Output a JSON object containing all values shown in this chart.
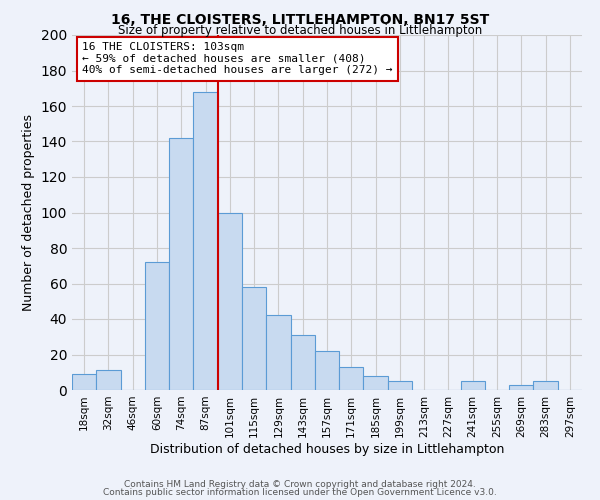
{
  "title": "16, THE CLOISTERS, LITTLEHAMPTON, BN17 5ST",
  "subtitle": "Size of property relative to detached houses in Littlehampton",
  "xlabel": "Distribution of detached houses by size in Littlehampton",
  "ylabel": "Number of detached properties",
  "footer_line1": "Contains HM Land Registry data © Crown copyright and database right 2024.",
  "footer_line2": "Contains public sector information licensed under the Open Government Licence v3.0.",
  "bin_labels": [
    "18sqm",
    "32sqm",
    "46sqm",
    "60sqm",
    "74sqm",
    "87sqm",
    "101sqm",
    "115sqm",
    "129sqm",
    "143sqm",
    "157sqm",
    "171sqm",
    "185sqm",
    "199sqm",
    "213sqm",
    "227sqm",
    "241sqm",
    "255sqm",
    "269sqm",
    "283sqm",
    "297sqm"
  ],
  "bar_values": [
    9,
    11,
    0,
    72,
    142,
    168,
    100,
    58,
    42,
    31,
    22,
    13,
    8,
    5,
    0,
    0,
    5,
    0,
    3,
    5,
    0
  ],
  "bar_color": "#c8daf0",
  "bar_edge_color": "#5b9bd5",
  "annotation_title": "16 THE CLOISTERS: 103sqm",
  "annotation_line2": "← 59% of detached houses are smaller (408)",
  "annotation_line3": "40% of semi-detached houses are larger (272) →",
  "annotation_box_color": "#ffffff",
  "annotation_border_color": "#cc0000",
  "vline_color": "#cc0000",
  "vline_x_index": 5.5,
  "ylim": [
    0,
    200
  ],
  "yticks": [
    0,
    20,
    40,
    60,
    80,
    100,
    120,
    140,
    160,
    180,
    200
  ],
  "grid_color": "#cccccc",
  "background_color": "#eef2fa"
}
